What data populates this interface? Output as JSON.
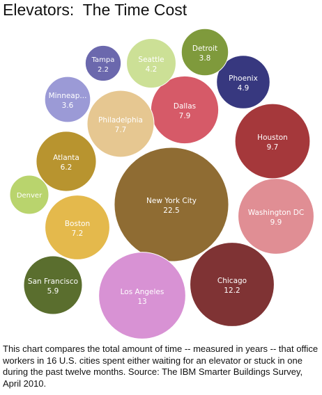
{
  "chart_data": {
    "type": "bubble",
    "title": "Elevators:  The Time Cost",
    "caption": "This chart compares the total amount of time -- measured in years -- that office workers in 16 U.S. cities spent either waiting for an elevator or stuck in one during the past twelve months. Source: The IBM Smarter Buildings Survey, April 2010.",
    "unit": "years",
    "points": [
      {
        "label": "New York City",
        "value": 22.5,
        "display": "22.5",
        "color": "#8f6c33"
      },
      {
        "label": "Los Angeles",
        "value": 13,
        "display": "13",
        "color": "#d892d4"
      },
      {
        "label": "Chicago",
        "value": 12.2,
        "display": "12.2",
        "color": "#7f3334"
      },
      {
        "label": "Washington DC",
        "value": 9.9,
        "display": "9.9",
        "color": "#e08e94"
      },
      {
        "label": "Houston",
        "value": 9.7,
        "display": "9.7",
        "color": "#a5383b"
      },
      {
        "label": "Dallas",
        "value": 7.9,
        "display": "7.9",
        "color": "#d65a68"
      },
      {
        "label": "Philadelphia",
        "value": 7.7,
        "display": "7.7",
        "color": "#e6c791"
      },
      {
        "label": "Boston",
        "value": 7.2,
        "display": "7.2",
        "color": "#e4b94c"
      },
      {
        "label": "Atlanta",
        "value": 6.2,
        "display": "6.2",
        "color": "#b8942f"
      },
      {
        "label": "San Francisco",
        "value": 5.9,
        "display": "5.9",
        "color": "#5a6e2e"
      },
      {
        "label": "Phoenix",
        "value": 4.9,
        "display": "4.9",
        "color": "#37387f"
      },
      {
        "label": "Seattle",
        "value": 4.2,
        "display": "4.2",
        "color": "#cce096"
      },
      {
        "label": "Detroit",
        "value": 3.8,
        "display": "3.8",
        "color": "#7f9a3c"
      },
      {
        "label": "Minneap...",
        "value": 3.6,
        "display": "3.6",
        "color": "#9b9ad6"
      },
      {
        "label": "Tampa",
        "value": 2.2,
        "display": "2.2",
        "color": "#6b68ad"
      },
      {
        "label": "Denver",
        "value": null,
        "display": "",
        "color": "#b9d46d"
      }
    ]
  }
}
